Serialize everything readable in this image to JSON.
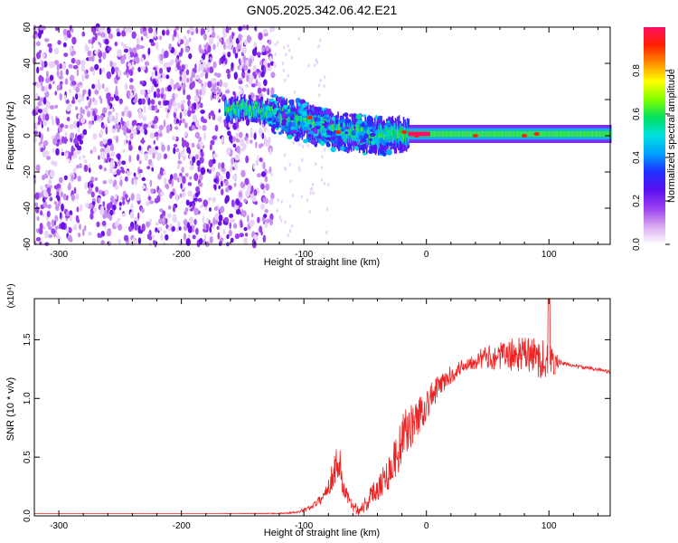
{
  "title": "GN05.2025.342.06.42.E21",
  "chart_data": [
    {
      "type": "heatmap",
      "panel": "top",
      "xlabel": "Height of straight line (km)",
      "ylabel": "Frequency (Hz)",
      "xlim": [
        -320,
        150
      ],
      "ylim": [
        -60,
        60
      ],
      "xticks": [
        -300,
        -200,
        -100,
        0,
        100
      ],
      "yticks": [
        -60,
        -40,
        -20,
        0,
        20,
        40,
        60
      ],
      "colorbar": {
        "label": "Normalized spectral amplitude",
        "range": [
          0,
          1
        ],
        "ticks": [
          0.0,
          0.2,
          0.4,
          0.6,
          0.8
        ],
        "colors": [
          "#ffffff",
          "#d9a8f0",
          "#9a3ff0",
          "#5a10f0",
          "#2030ff",
          "#00a0ff",
          "#00e0e0",
          "#00e060",
          "#80ff00",
          "#ffff00",
          "#ff9000",
          "#ff2000",
          "#ff1060"
        ]
      },
      "features": [
        {
          "name": "broadband noise",
          "x_range": [
            -320,
            -125
          ],
          "y_range": [
            -60,
            60
          ],
          "amplitude": 0.12
        },
        {
          "name": "signal track",
          "points": [
            [
              -165,
              14
            ],
            [
              -150,
              15
            ],
            [
              -135,
              14
            ],
            [
              -120,
              11
            ],
            [
              -100,
              8
            ],
            [
              -85,
              5
            ],
            [
              -70,
              2
            ],
            [
              -55,
              1
            ],
            [
              -40,
              0
            ],
            [
              -25,
              1
            ],
            [
              -15,
              1
            ],
            [
              0,
              1
            ],
            [
              50,
              1
            ],
            [
              100,
              1
            ],
            [
              150,
              1
            ]
          ]
        },
        {
          "name": "peak hotspots",
          "points": [
            [
              -95,
              10
            ],
            [
              -72,
              2
            ],
            [
              -18,
              2
            ],
            [
              -8,
              0
            ],
            [
              40,
              0
            ],
            [
              80,
              0
            ],
            [
              90,
              1
            ]
          ]
        }
      ]
    },
    {
      "type": "line",
      "panel": "bottom",
      "xlabel": "Height of straight line (km)",
      "ylabel": "SNR (10 * v/v)",
      "y_multiplier": "(x10⁴)",
      "xlim": [
        -320,
        150
      ],
      "ylim": [
        0,
        1.85
      ],
      "xticks": [
        -300,
        -200,
        -100,
        0,
        100
      ],
      "yticks": [
        0.0,
        0.5,
        1.0,
        1.5
      ],
      "series": [
        {
          "name": "SNR",
          "color": "#ee2222",
          "x": [
            -320,
            -250,
            -180,
            -120,
            -105,
            -95,
            -85,
            -78,
            -72,
            -68,
            -62,
            -55,
            -48,
            -40,
            -32,
            -25,
            -18,
            -10,
            0,
            10,
            20,
            30,
            40,
            50,
            60,
            70,
            80,
            90,
            100,
            110,
            120,
            130,
            140,
            150
          ],
          "y": [
            0.02,
            0.02,
            0.02,
            0.02,
            0.03,
            0.07,
            0.15,
            0.3,
            0.5,
            0.25,
            0.1,
            0.05,
            0.12,
            0.25,
            0.35,
            0.5,
            0.7,
            0.8,
            0.95,
            1.1,
            1.2,
            1.28,
            1.33,
            1.35,
            1.36,
            1.37,
            1.38,
            1.35,
            1.32,
            1.3,
            1.28,
            1.26,
            1.25,
            1.22
          ],
          "noise": [
            0,
            0,
            0,
            0.005,
            0.01,
            0.02,
            0.04,
            0.1,
            0.2,
            0.12,
            0.05,
            0.05,
            0.08,
            0.12,
            0.15,
            0.2,
            0.2,
            0.18,
            0.15,
            0.1,
            0.08,
            0.06,
            0.08,
            0.1,
            0.12,
            0.14,
            0.15,
            0.17,
            0.18,
            0.02,
            0.015,
            0.015,
            0.015,
            0.015
          ]
        }
      ]
    }
  ]
}
